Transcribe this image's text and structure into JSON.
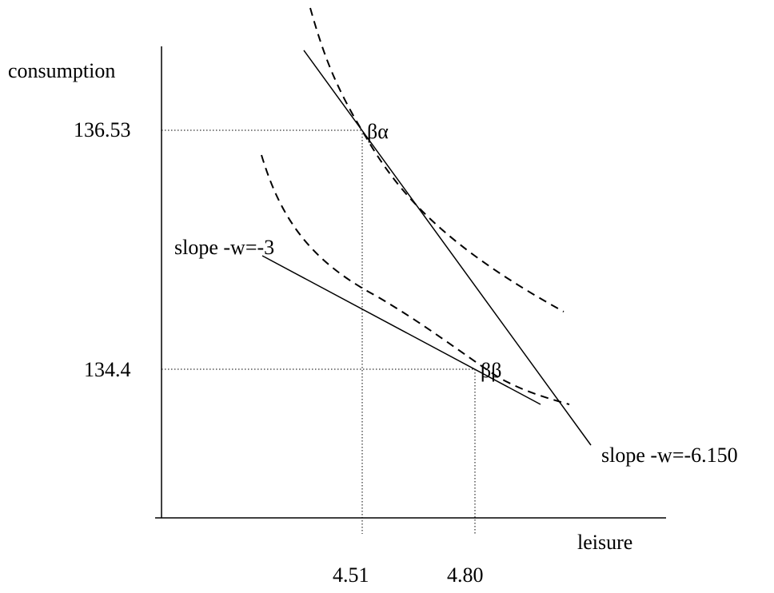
{
  "diagram": {
    "y_axis_label": "consumption",
    "x_axis_label": "leisure",
    "y_ticks": [
      "136.53",
      "134.4"
    ],
    "x_ticks": [
      "4.51",
      "4.80"
    ],
    "budget_lines": [
      {
        "label": "slope -w=-6.150"
      },
      {
        "label": "slope -w=-3"
      }
    ],
    "points": [
      {
        "label": "βα",
        "leisure": "4.51",
        "consumption": "136.53"
      },
      {
        "label": "ββ",
        "leisure": "4.80",
        "consumption": "134.4"
      }
    ],
    "indifference_curve_style": "dashed",
    "guide_line_style": "dotted",
    "colors": {
      "ink": "#000000",
      "background": "#ffffff"
    }
  }
}
